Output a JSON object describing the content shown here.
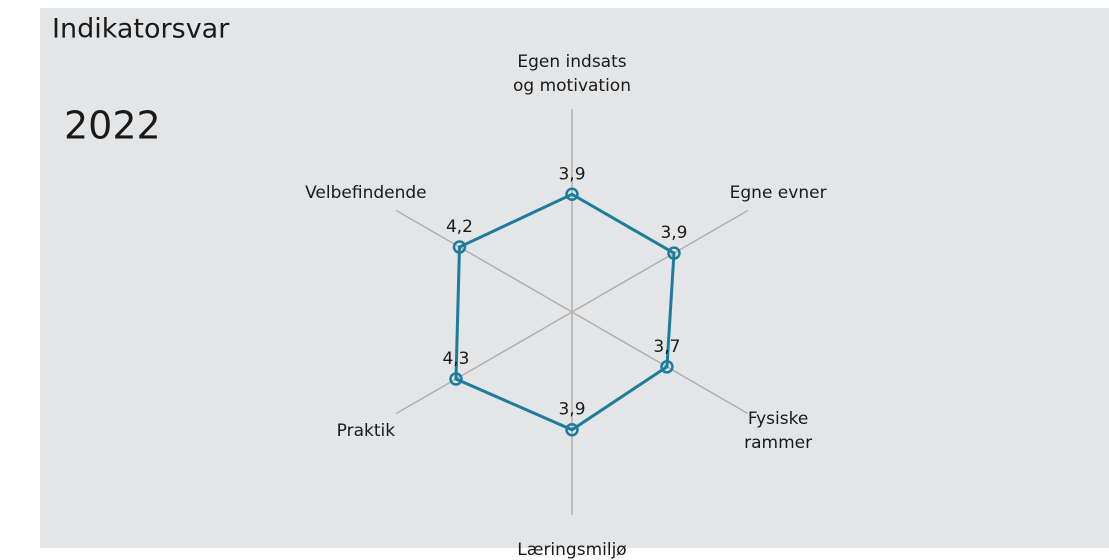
{
  "chart_data": {
    "type": "radar",
    "title": "Indikatorsvar",
    "subtitle": "2022",
    "categories": [
      "Egen indsats\nog motivation",
      "Egne evner",
      "Fysiske\nrammer",
      "Læringsmiljø",
      "Praktik",
      "Velbefindende"
    ],
    "series": [
      {
        "name": "2022",
        "color": "#1b7c9c",
        "values": [
          3.9,
          3.9,
          3.7,
          3.9,
          4.3,
          4.2
        ],
        "value_labels": [
          "3,9",
          "3,9",
          "3,7",
          "3,9",
          "4,3",
          "4,2"
        ]
      }
    ],
    "rlim": [
      1,
      6
    ]
  }
}
